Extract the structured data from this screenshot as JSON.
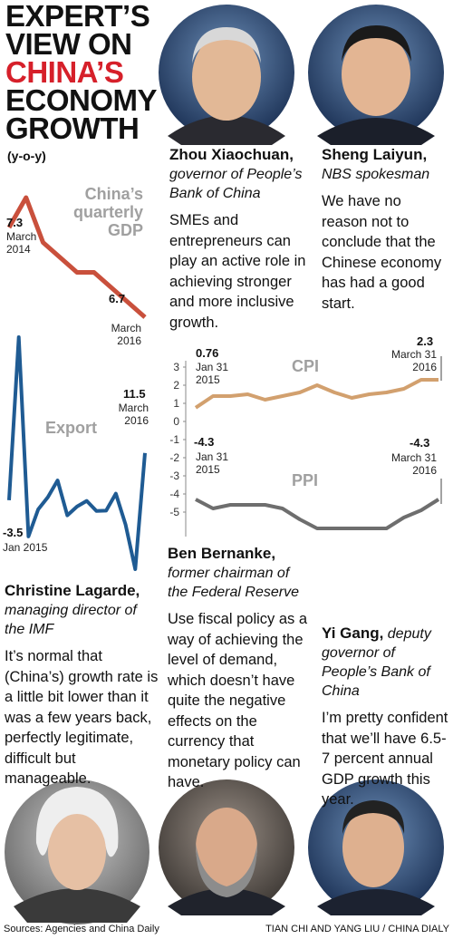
{
  "header": {
    "title_lines": [
      "EXPERT’S",
      "VIEW ON",
      "CHINA’S",
      "ECONOMY",
      "GROWTH"
    ],
    "subtitle": "(y-o-y)"
  },
  "experts": [
    {
      "name": "Zhou Xiaochuan,",
      "role": "governor of People’s Bank of China",
      "quote": "SMEs and entrepreneurs can play an active role in achieving stronger and more inclusive growth."
    },
    {
      "name": "Sheng Laiyun,",
      "role": "NBS spokesman",
      "quote": "We have no reason not to conclude that the Chinese economy has had a good start."
    },
    {
      "name": "Christine Lagarde,",
      "role": "managing director of the IMF",
      "quote": "It’s normal that (China’s) growth rate is a little bit lower than it was a few years back, perfectly legitimate, difficult but manageable."
    },
    {
      "name": "Ben Bernanke,",
      "role": "former chairman of the Federal Reserve",
      "quote": "Use fiscal policy as a way of achieving the level of demand, which doesn’t have quite the negative effects on the currency that monetary policy can have."
    },
    {
      "name": "Yi Gang,",
      "role": "deputy governor of People’s Bank of China",
      "quote": "I’m pretty confident that we’ll have 6.5-7 percent annual GDP growth this year."
    }
  ],
  "chart_data": [
    {
      "type": "line",
      "title": "China’s quarterly GDP",
      "color": "#c9503c",
      "categories": [
        "March 2014",
        null,
        null,
        null,
        null,
        null,
        null,
        null,
        "March 2016"
      ],
      "values": [
        7.3,
        7.5,
        7.2,
        7.1,
        7.0,
        7.0,
        6.9,
        6.8,
        6.7
      ]
    },
    {
      "type": "line",
      "title": "Export",
      "color": "#1f5b93",
      "categories": [
        "Jan 2015",
        null,
        null,
        null,
        null,
        null,
        null,
        null,
        null,
        null,
        null,
        null,
        null,
        null,
        "March 2016"
      ],
      "values": [
        -3.5,
        48.3,
        -15,
        -6.4,
        -2.5,
        2.8,
        -8.3,
        -5.5,
        -3.7,
        -6.9,
        -6.8,
        -1.4,
        -11.2,
        -25.4,
        11.5
      ]
    },
    {
      "type": "line",
      "title": "CPI",
      "color": "#d2a06e",
      "categories": [
        "Jan 31 2015",
        null,
        null,
        null,
        null,
        null,
        null,
        null,
        null,
        null,
        null,
        null,
        null,
        null,
        "March 31 2016"
      ],
      "values": [
        0.76,
        1.4,
        1.4,
        1.5,
        1.2,
        1.4,
        1.6,
        2.0,
        1.6,
        1.3,
        1.5,
        1.6,
        1.8,
        2.3,
        2.3
      ],
      "ylim": [
        0,
        3
      ],
      "yticks": [
        3,
        2,
        1,
        0
      ]
    },
    {
      "type": "line",
      "title": "PPI",
      "color": "#6e6e6e",
      "categories": [
        "Jan 31 2015",
        null,
        null,
        null,
        null,
        null,
        null,
        null,
        null,
        null,
        null,
        null,
        null,
        null,
        "March 31 2016"
      ],
      "values": [
        -4.3,
        -4.8,
        -4.6,
        -4.6,
        -4.6,
        -4.8,
        -5.4,
        -5.9,
        -5.9,
        -5.9,
        -5.9,
        -5.9,
        -5.3,
        -4.9,
        -4.3
      ],
      "ylim": [
        -6,
        -1
      ],
      "yticks": [
        -1,
        -2,
        -3,
        -4,
        -5
      ]
    }
  ],
  "footer": {
    "sources": "Sources: Agencies and China Daily",
    "credit": "TIAN CHI AND YANG LIU / CHINA DIALY"
  }
}
